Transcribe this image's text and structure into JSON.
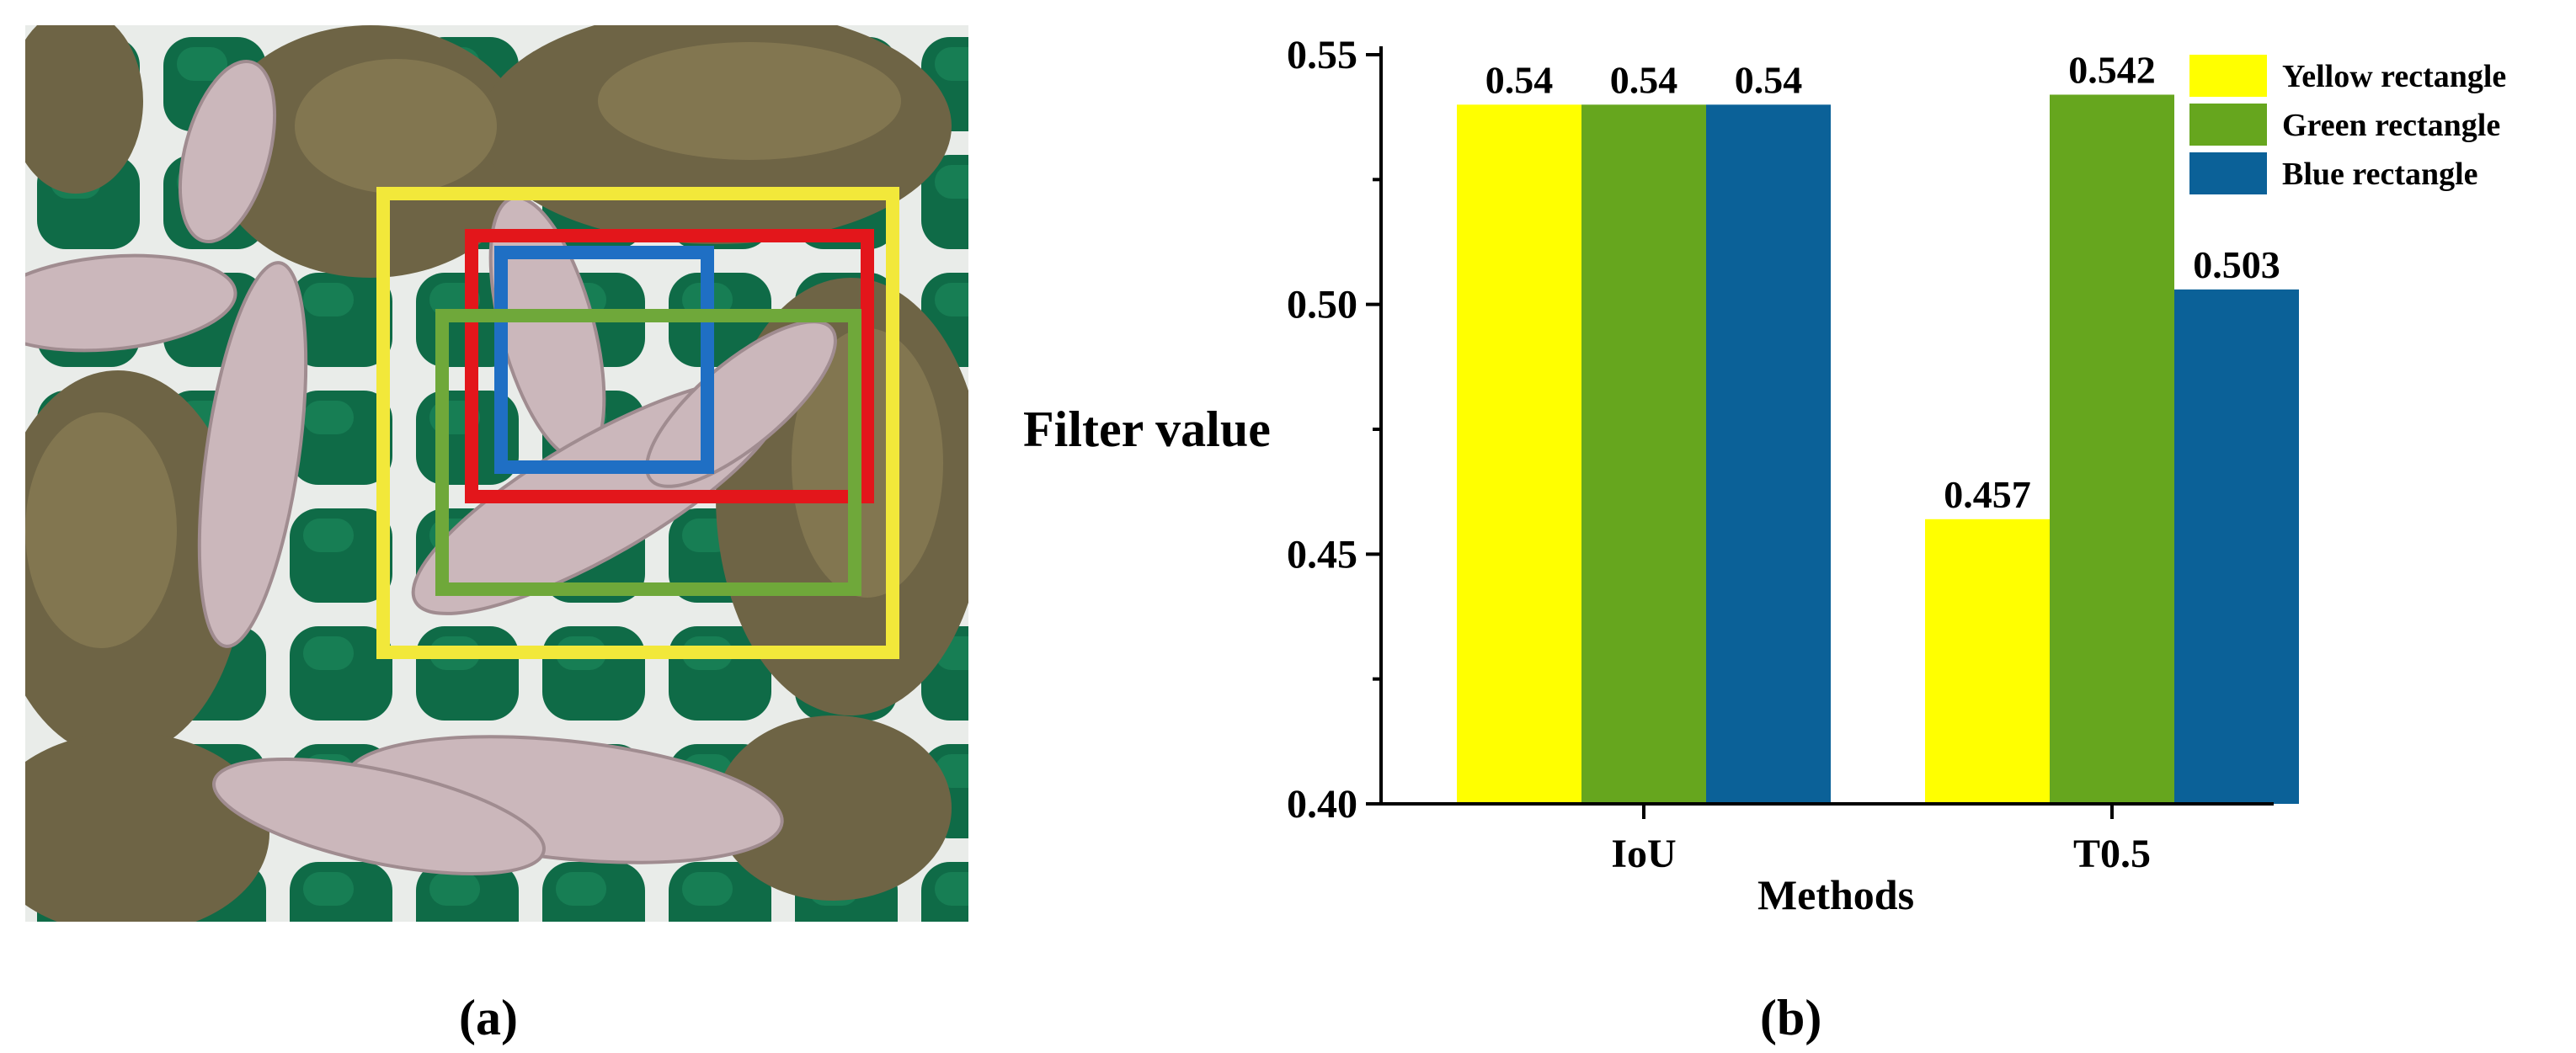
{
  "captions": {
    "a": "(a)",
    "b": "(b)"
  },
  "photo": {
    "description_icon": "silkworm-photo",
    "rect_colors": {
      "yellow": "#F2E83A",
      "red": "#E3161B",
      "blue": "#1F6FC4",
      "green": "#6FA83A"
    }
  },
  "chart_data": {
    "type": "bar",
    "categories": [
      "IoU",
      "T0.5"
    ],
    "series": [
      {
        "name": "Yellow  rectangle",
        "values": [
          0.54,
          0.457
        ],
        "labels": [
          "0.54",
          "0.457"
        ],
        "color": "#FFFF00"
      },
      {
        "name": "Green  rectangle",
        "values": [
          0.54,
          0.542
        ],
        "labels": [
          "0.54",
          "0.542"
        ],
        "color": "#66A61E"
      },
      {
        "name": "Blue  rectangle",
        "values": [
          0.54,
          0.503
        ],
        "labels": [
          "0.54",
          "0.503"
        ],
        "color": "#0B6198"
      }
    ],
    "xlabel": "Methods",
    "ylabel": "Filter value",
    "ylim": [
      0.4,
      0.55
    ],
    "yticks": [
      0.4,
      0.45,
      0.5,
      0.55
    ],
    "ytick_labels": [
      "0.40",
      "0.45",
      "0.50",
      "0.55"
    ],
    "legend_position": "top-right",
    "grid": false
  }
}
